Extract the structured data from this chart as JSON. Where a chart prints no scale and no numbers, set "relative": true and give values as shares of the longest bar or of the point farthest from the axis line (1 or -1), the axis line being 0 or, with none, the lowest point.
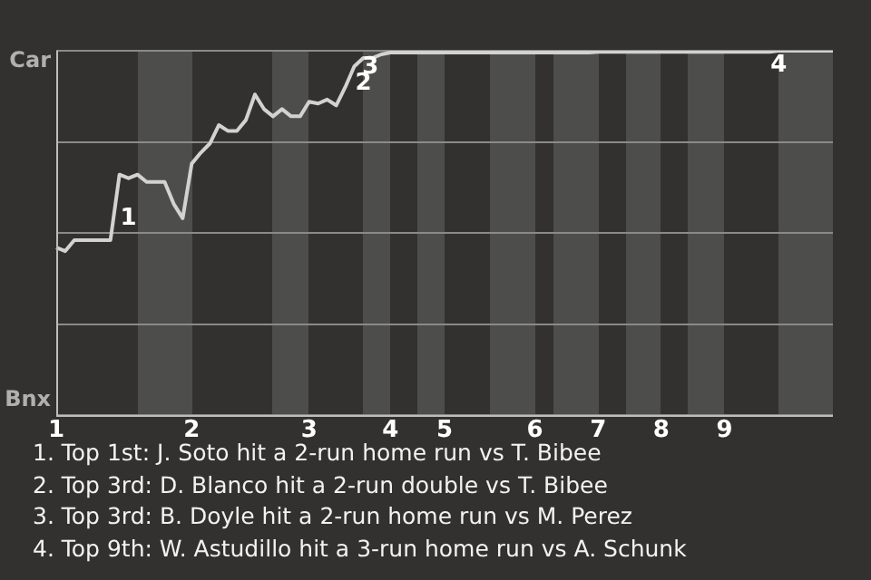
{
  "chart_data": {
    "type": "line",
    "relative": true,
    "categories": [
      "1",
      null,
      null,
      null,
      null,
      null,
      null,
      null,
      null,
      null,
      null,
      null,
      null,
      null,
      null,
      "2",
      null,
      null,
      null,
      null,
      null,
      null,
      null,
      null,
      null,
      null,
      null,
      null,
      "3",
      null,
      null,
      null,
      null,
      null,
      null,
      null,
      null,
      "4",
      null,
      null,
      null,
      null,
      null,
      "5",
      null,
      null,
      null,
      null,
      null,
      null,
      null,
      null,
      null,
      "6",
      null,
      null,
      null,
      null,
      null,
      null,
      "7",
      null,
      null,
      null,
      null,
      null,
      null,
      "8",
      null,
      null,
      null,
      null,
      null,
      null,
      "9",
      null,
      null,
      null,
      null,
      null,
      null,
      null,
      null,
      null,
      null,
      null,
      null
    ],
    "series": [
      {
        "color": "#d2d2d2",
        "values": [
          0.46,
          0.45,
          0.48,
          0.48,
          0.48,
          0.48,
          0.48,
          0.66,
          0.65,
          0.66,
          0.64,
          0.64,
          0.64,
          0.58,
          0.54,
          0.69,
          0.72,
          0.745,
          0.796,
          0.78,
          0.78,
          0.81,
          0.88,
          0.84,
          0.82,
          0.84,
          0.82,
          0.82,
          0.86,
          0.855,
          0.866,
          0.85,
          0.9,
          0.957,
          0.98,
          0.98,
          0.99,
          0.995,
          0.995,
          0.995,
          0.995,
          0.995,
          0.995,
          0.995,
          0.995,
          0.995,
          0.995,
          0.995,
          0.995,
          0.995,
          0.995,
          0.995,
          0.995,
          0.995,
          0.995,
          0.995,
          0.995,
          0.995,
          0.995,
          0.995,
          0.997,
          0.997,
          0.997,
          0.997,
          0.997,
          0.997,
          0.997,
          0.997,
          0.997,
          0.997,
          0.997,
          0.997,
          0.997,
          0.997,
          0.997,
          0.997,
          0.997,
          0.997,
          0.997,
          0.997,
          1,
          1,
          1,
          1,
          1,
          1,
          1
        ]
      }
    ],
    "grid": "y",
    "legend": false,
    "marker": "none",
    "line_style": "solid",
    "annotations": [
      "1",
      "2",
      "3",
      "4",
      "Car",
      "Bnx",
      "1. Top 1st: J. Soto hit a 2-run home run vs T. Bibee",
      "2. Top 3rd: D. Blanco hit a 2-run double vs T. Bibee",
      "3. Top 3rd: B. Doyle hit a 2-run home run vs M. Perez",
      "4. Top 9th: W. Astudillo hit a 3-run home run vs A. Schunk"
    ]
  }
}
